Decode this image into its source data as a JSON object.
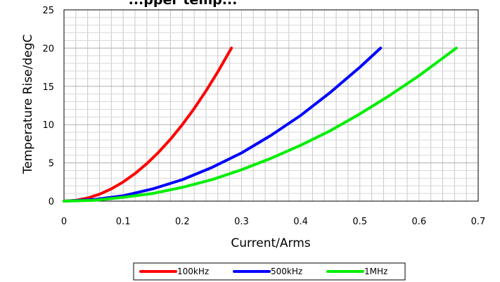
{
  "chart_data": {
    "type": "line",
    "title": "...pper temp...",
    "xlabel": "Current/Arms",
    "ylabel": "Temperature Rise/degC",
    "xlim": [
      0,
      0.7
    ],
    "ylim": [
      0,
      25
    ],
    "x_ticks": [
      "0",
      "0.1",
      "0.2",
      "0.3",
      "0.4",
      "0.5",
      "0.6",
      "0.7"
    ],
    "y_ticks": [
      "0",
      "5",
      "10",
      "15",
      "20",
      "25"
    ],
    "grid": true,
    "legend_position": "bottom",
    "series": [
      {
        "name": "100kHz",
        "color": "#ff0000",
        "x": [
          0,
          0.02,
          0.04,
          0.06,
          0.08,
          0.1,
          0.12,
          0.14,
          0.16,
          0.18,
          0.2,
          0.22,
          0.24,
          0.26,
          0.283
        ],
        "y": [
          0,
          0.1,
          0.4,
          0.9,
          1.6,
          2.5,
          3.6,
          4.9,
          6.4,
          8.1,
          10.0,
          12.1,
          14.4,
          16.9,
          20.0
        ]
      },
      {
        "name": "500kHz",
        "color": "#0000ff",
        "x": [
          0,
          0.05,
          0.1,
          0.15,
          0.2,
          0.25,
          0.3,
          0.35,
          0.4,
          0.45,
          0.5,
          0.535
        ],
        "y": [
          0,
          0.2,
          0.7,
          1.6,
          2.8,
          4.4,
          6.3,
          8.6,
          11.2,
          14.2,
          17.5,
          20.0
        ]
      },
      {
        "name": "1MHz",
        "color": "#00ee00",
        "x": [
          0,
          0.05,
          0.1,
          0.15,
          0.2,
          0.25,
          0.3,
          0.35,
          0.4,
          0.45,
          0.5,
          0.55,
          0.6,
          0.663
        ],
        "y": [
          0,
          0.1,
          0.5,
          1.0,
          1.8,
          2.8,
          4.1,
          5.6,
          7.3,
          9.2,
          11.4,
          13.8,
          16.4,
          20.0
        ]
      }
    ]
  }
}
